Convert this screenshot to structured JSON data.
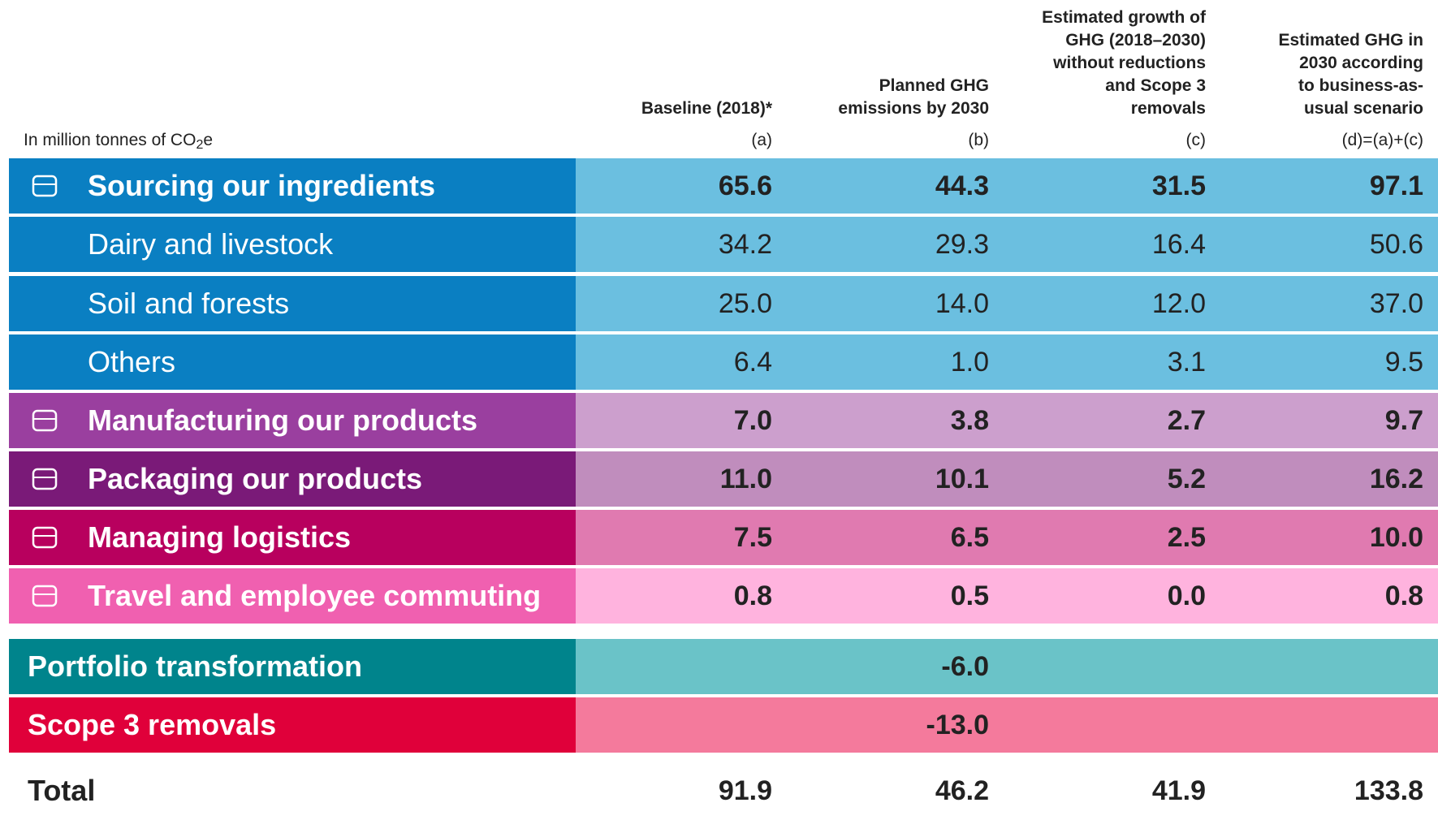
{
  "unit_label": {
    "prefix": "In million tonnes of CO",
    "sub": "2",
    "suffix": "e"
  },
  "columns": [
    {
      "header": [
        "Baseline (2018)*"
      ],
      "key": "(a)"
    },
    {
      "header": [
        "Planned GHG",
        "emissions by 2030"
      ],
      "key": "(b)"
    },
    {
      "header": [
        "Estimated growth of",
        "GHG (2018–2030)",
        "without reductions",
        "and Scope 3",
        "removals"
      ],
      "key": "(c)"
    },
    {
      "header": [
        "Estimated GHG in",
        "2030 according",
        "to business-as-",
        "usual scenario"
      ],
      "key": "(d)=(a)+(c)"
    }
  ],
  "rows": [
    {
      "label": "Sourcing our ingredients",
      "values": [
        "65.6",
        "44.3",
        "31.5",
        "97.1"
      ]
    },
    {
      "label": "Dairy and livestock",
      "values": [
        "34.2",
        "29.3",
        "16.4",
        "50.6"
      ]
    },
    {
      "label": "Soil and forests",
      "values": [
        "25.0",
        "14.0",
        "12.0",
        "37.0"
      ]
    },
    {
      "label": "Others",
      "values": [
        "6.4",
        "1.0",
        "3.1",
        "9.5"
      ]
    },
    {
      "label": "Manufacturing our products",
      "values": [
        "7.0",
        "3.8",
        "2.7",
        "9.7"
      ]
    },
    {
      "label": "Packaging our products",
      "values": [
        "11.0",
        "10.1",
        "5.2",
        "16.2"
      ]
    },
    {
      "label": "Managing logistics",
      "values": [
        "7.5",
        "6.5",
        "2.5",
        "10.0"
      ]
    },
    {
      "label": "Travel and employee commuting",
      "values": [
        "0.8",
        "0.5",
        "0.0",
        "0.8"
      ]
    }
  ],
  "adjustments": [
    {
      "label": "Portfolio transformation",
      "planned": "-6.0"
    },
    {
      "label": "Scope 3 removals",
      "planned": "-13.0"
    }
  ],
  "total": {
    "label": "Total",
    "values": [
      "91.9",
      "46.2",
      "41.9",
      "133.8"
    ]
  }
}
